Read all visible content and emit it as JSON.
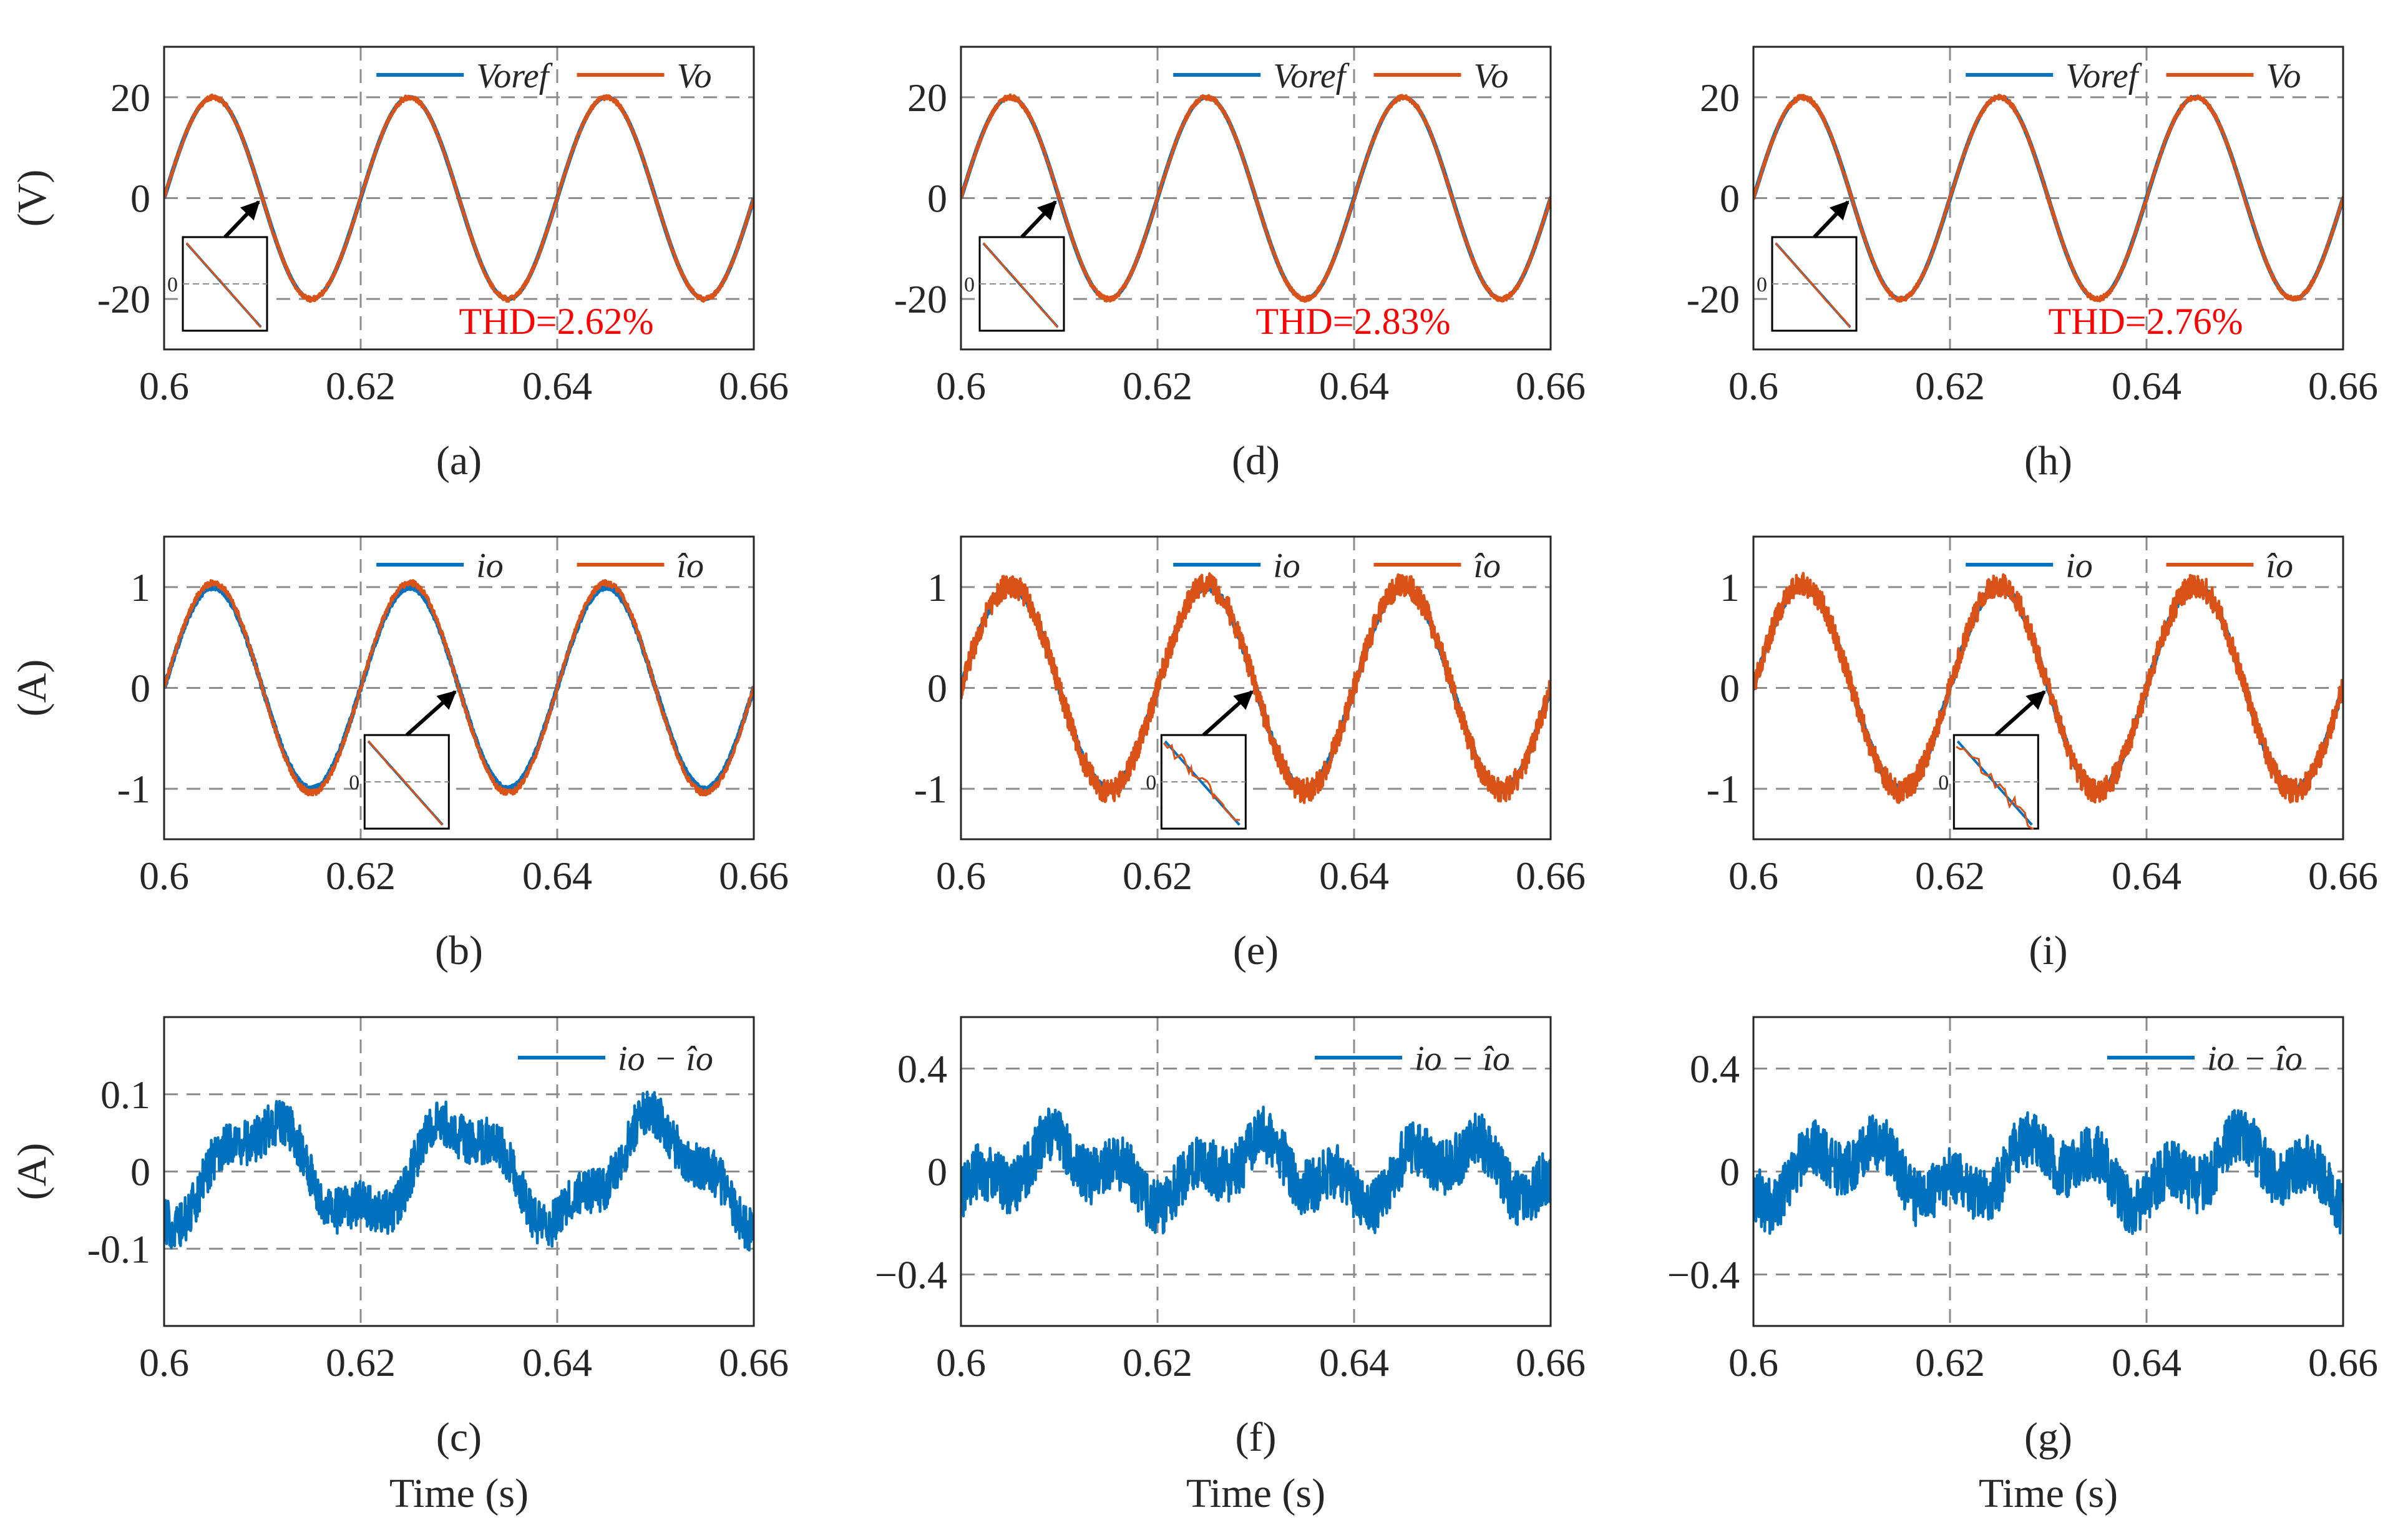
{
  "figure": {
    "colors": {
      "blue": "#0072BD",
      "orange": "#D95319",
      "grid": "#8c8c8c",
      "thd": "#ff0000"
    },
    "x_tick_labels": [
      "0.6",
      "0.62",
      "0.64",
      "0.66"
    ],
    "x_axis_title": "Time (s)"
  },
  "chart_data": [
    {
      "id": "a",
      "caption": "(a)",
      "type": "line",
      "ylabel": "(V)",
      "xlim": [
        0.6,
        0.66
      ],
      "ylim": [
        -30,
        30
      ],
      "yticks": [
        -20,
        0,
        20
      ],
      "ytick_labels": [
        "-20",
        "0",
        "20"
      ],
      "legend": [
        "Voref",
        "Vo"
      ],
      "annotation": "THD=2.62%",
      "series": [
        {
          "name": "Voref",
          "kind": "sine",
          "amplitude": 20,
          "frequency_hz": 50,
          "phase_deg": 0,
          "color": "blue"
        },
        {
          "name": "Vo",
          "kind": "sine",
          "amplitude": 20,
          "frequency_hz": 50,
          "phase_deg": 0,
          "noise": 0.5,
          "color": "orange"
        }
      ],
      "inset": {
        "tick_label": "0",
        "target_x": 0.61
      }
    },
    {
      "id": "b",
      "caption": "(b)",
      "type": "line",
      "ylabel": "(A)",
      "xlim": [
        0.6,
        0.66
      ],
      "ylim": [
        -1.5,
        1.5
      ],
      "yticks": [
        -1,
        0,
        1
      ],
      "ytick_labels": [
        "-1",
        "0",
        "1"
      ],
      "legend": [
        "io",
        "îo"
      ],
      "series": [
        {
          "name": "io",
          "kind": "sine",
          "amplitude": 1.0,
          "frequency_hz": 50,
          "phase_deg": 0,
          "noise": 0.02,
          "color": "blue"
        },
        {
          "name": "îo",
          "kind": "sine",
          "amplitude": 1.04,
          "frequency_hz": 50,
          "phase_deg": 0,
          "noise": 0.03,
          "color": "orange"
        }
      ],
      "inset": {
        "tick_label": "0",
        "target_x": 0.63
      }
    },
    {
      "id": "c",
      "caption": "(c)",
      "type": "line",
      "ylabel": "(A)",
      "xlim": [
        0.6,
        0.66
      ],
      "ylim": [
        -0.2,
        0.2
      ],
      "yticks": [
        -0.1,
        0,
        0.1
      ],
      "ytick_labels": [
        "-0.1",
        "0",
        "0.1"
      ],
      "legend": [
        "io − îo"
      ],
      "xlabel": "Time (s)",
      "series": [
        {
          "name": "io − îo",
          "kind": "sine",
          "amplitude": 0.06,
          "frequency_hz": 50,
          "phase_deg": -90,
          "noise": 0.03,
          "color": "blue"
        }
      ]
    },
    {
      "id": "d",
      "caption": "(d)",
      "type": "line",
      "ylabel": "",
      "xlim": [
        0.6,
        0.66
      ],
      "ylim": [
        -30,
        30
      ],
      "yticks": [
        -20,
        0,
        20
      ],
      "ytick_labels": [
        "-20",
        "0",
        "20"
      ],
      "legend": [
        "Voref",
        "Vo"
      ],
      "annotation": "THD=2.83%",
      "series": [
        {
          "name": "Voref",
          "kind": "sine",
          "amplitude": 20,
          "frequency_hz": 50,
          "phase_deg": 0,
          "color": "blue"
        },
        {
          "name": "Vo",
          "kind": "sine",
          "amplitude": 20,
          "frequency_hz": 50,
          "phase_deg": 0,
          "noise": 0.5,
          "color": "orange"
        }
      ],
      "inset": {
        "tick_label": "0",
        "target_x": 0.61
      }
    },
    {
      "id": "e",
      "caption": "(e)",
      "type": "line",
      "ylabel": "",
      "xlim": [
        0.6,
        0.66
      ],
      "ylim": [
        -1.5,
        1.5
      ],
      "yticks": [
        -1,
        0,
        1
      ],
      "ytick_labels": [
        "-1",
        "0",
        "1"
      ],
      "legend": [
        "io",
        "îo"
      ],
      "series": [
        {
          "name": "io",
          "kind": "sine",
          "amplitude": 1.0,
          "frequency_hz": 50,
          "phase_deg": 0,
          "noise": 0.03,
          "color": "blue"
        },
        {
          "name": "îo",
          "kind": "sine",
          "amplitude": 1.02,
          "frequency_hz": 50,
          "phase_deg": 0,
          "noise": 0.12,
          "color": "orange"
        }
      ],
      "inset": {
        "tick_label": "0",
        "target_x": 0.63
      }
    },
    {
      "id": "f",
      "caption": "(f)",
      "type": "line",
      "ylabel": "",
      "xlim": [
        0.6,
        0.66
      ],
      "ylim": [
        -0.6,
        0.6
      ],
      "yticks": [
        -0.4,
        0,
        0.4
      ],
      "ytick_labels": [
        "−0.4",
        "0",
        "0.4"
      ],
      "legend": [
        "io − îo"
      ],
      "xlabel": "Time (s)",
      "series": [
        {
          "name": "io − îo",
          "kind": "sine",
          "amplitude": 0.08,
          "frequency_hz": 50,
          "phase_deg": -90,
          "noise": 0.11,
          "color": "blue"
        }
      ]
    },
    {
      "id": "h",
      "caption": "(h)",
      "type": "line",
      "ylabel": "",
      "xlim": [
        0.6,
        0.66
      ],
      "ylim": [
        -30,
        30
      ],
      "yticks": [
        -20,
        0,
        20
      ],
      "ytick_labels": [
        "-20",
        "0",
        "20"
      ],
      "legend": [
        "Voref",
        "Vo"
      ],
      "annotation": "THD=2.76%",
      "series": [
        {
          "name": "Voref",
          "kind": "sine",
          "amplitude": 20,
          "frequency_hz": 50,
          "phase_deg": 0,
          "color": "blue"
        },
        {
          "name": "Vo",
          "kind": "sine",
          "amplitude": 20,
          "frequency_hz": 50,
          "phase_deg": 0,
          "noise": 0.5,
          "color": "orange"
        }
      ],
      "inset": {
        "tick_label": "0",
        "target_x": 0.61
      }
    },
    {
      "id": "i",
      "caption": "(i)",
      "type": "line",
      "ylabel": "",
      "xlim": [
        0.6,
        0.66
      ],
      "ylim": [
        -1.5,
        1.5
      ],
      "yticks": [
        -1,
        0,
        1
      ],
      "ytick_labels": [
        "-1",
        "0",
        "1"
      ],
      "legend": [
        "io",
        "îo"
      ],
      "series": [
        {
          "name": "io",
          "kind": "sine",
          "amplitude": 1.0,
          "frequency_hz": 50,
          "phase_deg": 0,
          "noise": 0.03,
          "color": "blue"
        },
        {
          "name": "îo",
          "kind": "sine",
          "amplitude": 1.02,
          "frequency_hz": 50,
          "phase_deg": 0,
          "noise": 0.12,
          "color": "orange"
        }
      ],
      "inset": {
        "tick_label": "0",
        "target_x": 0.63
      }
    },
    {
      "id": "g",
      "caption": "(g)",
      "type": "line",
      "ylabel": "",
      "xlim": [
        0.6,
        0.66
      ],
      "ylim": [
        -0.6,
        0.6
      ],
      "yticks": [
        -0.4,
        0,
        0.4
      ],
      "ytick_labels": [
        "−0.4",
        "0",
        "0.4"
      ],
      "legend": [
        "io − îo"
      ],
      "xlabel": "Time (s)",
      "series": [
        {
          "name": "io − îo",
          "kind": "sine",
          "amplitude": 0.08,
          "frequency_hz": 50,
          "phase_deg": -90,
          "noise": 0.11,
          "color": "blue"
        }
      ]
    }
  ]
}
